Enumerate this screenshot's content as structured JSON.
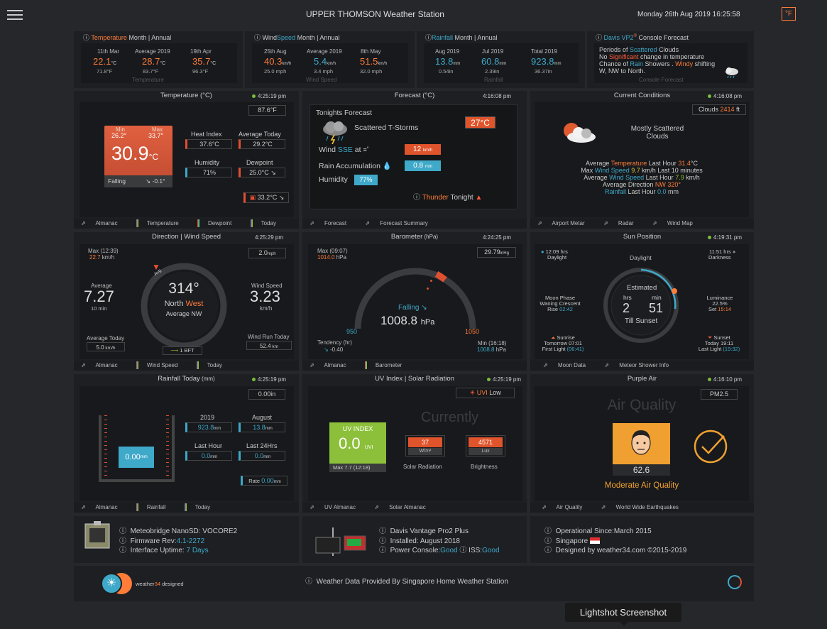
{
  "header": {
    "title": "UPPER THOMSON Weather Station",
    "datetime": "Monday 26th Aug 2019  16:25:58",
    "unit_toggle": "°F"
  },
  "top": {
    "temp": {
      "title_a": "Temperature",
      "title_b": " Month | Annual",
      "c1_label": "11th Mar",
      "c1_val": "22.1",
      "c1_unit": "°C",
      "c1_sub": "71.8°F",
      "c2_label": "Average 2019",
      "c2_val": "28.7",
      "c2_unit": "°C",
      "c2_sub": "83.7°F",
      "c3_label": "19th Apr",
      "c3_val": "35.7",
      "c3_unit": "°C",
      "c3_sub": "96.3°F",
      "caption": "Temperature"
    },
    "wind": {
      "title_a": "Wind",
      "title_b": "Speed",
      "title_c": "  Month | Annual",
      "c1_label": "25th Aug",
      "c1_val": "40.3",
      "c1_unit": "km/h",
      "c1_sub": "25.0 mph",
      "c2_label": "Average 2019",
      "c2_val": "5.4",
      "c2_unit": "km/h",
      "c2_sub": "3.4 mph",
      "c3_label": "8th May",
      "c3_val": "51.5",
      "c3_unit": "km/h",
      "c3_sub": "32.0 mph",
      "caption": "Wind Speed"
    },
    "rain": {
      "title_a": "Rainfall",
      "title_b": " Month | Annual",
      "c1_label": "Aug 2019",
      "c1_val": "13.8",
      "c1_unit": "mm",
      "c1_sub": "0.54in",
      "c2_label": "Jul 2019",
      "c2_val": "60.8",
      "c2_unit": "mm",
      "c2_sub": "2.39in",
      "c3_label": "Total 2019",
      "c3_val": "923.8",
      "c3_unit": "mm",
      "c3_sub": "36.37in",
      "caption": "Rainfall"
    },
    "console": {
      "title_a": "Davis VP2",
      "title_sup": "®",
      "title_b": " Console Forecast",
      "l1a": "Periods of ",
      "l1b": "Scattered",
      "l1c": " Clouds",
      "l2a": "No ",
      "l2b": "Significant",
      "l2c": " change in temperature",
      "l3a": "Chance of ",
      "l3b": "Rain",
      "l3c": " Showers . ",
      "l3d": "Windy",
      "l3e": " shifting",
      "l4": "W, NW to North.",
      "caption": "Console Forecast"
    }
  },
  "temperature": {
    "title": "Temperature (°C)",
    "time": "4:25:19 pm",
    "f_box": "87.6°F",
    "min_label": "Min",
    "min_val": "26.2°",
    "max_label": "Max",
    "max_val": "33.7°",
    "current": "30.9",
    "current_unit": "°C",
    "trend": "Falling",
    "trend_val": "-0.1°",
    "hi_label": "Heat Index",
    "hi_val": "37.6°C",
    "avg_label": "Average Today",
    "avg_val": "29.2°C",
    "hum_label": "Humidity",
    "hum_val": "71%",
    "dew_label": "Dewpoint",
    "dew_val": "25.0°C",
    "indoor": "33.2°C",
    "foot": [
      "Almanac",
      "Temperature",
      "Dewpoint",
      "Today"
    ]
  },
  "forecast": {
    "title": "Forecast (°C)",
    "time": "4:16:08 pm",
    "label": "Tonights Forecast",
    "cond": "Scattered T-Storms",
    "temp": "27°C",
    "wind_a": "Wind ",
    "wind_dir": "SSE",
    "wind_b": " at",
    "wind_val": "12",
    "wind_unit": "km/h",
    "rain_label": "Rain Accumulation",
    "rain_val": "0.8",
    "rain_unit": "mm",
    "hum_label": "Humidity",
    "hum_val": "77%",
    "thunder_a": "Thunder",
    "thunder_b": " Tonight",
    "foot": [
      "Forecast",
      "Forecast Summary"
    ]
  },
  "conditions": {
    "title": "Current Conditions",
    "time": "4:16:08 pm",
    "clouds_label": "Clouds",
    "clouds_val": "2414",
    "clouds_unit": "ft",
    "desc1": "Mostly Scattered",
    "desc2": "Clouds",
    "l1a": "Average ",
    "l1b": "Temperature",
    "l1c": " Last Hour ",
    "l1d": "31.4",
    "l1e": "°C",
    "l2a": "Max ",
    "l2b": "Wind Speed",
    "l2c": " 9.7",
    "l2d": " km/h Last 10 minutes",
    "l3a": "Average ",
    "l3b": "Wind Speed",
    "l3c": " Last Hour ",
    "l3d": "7.9",
    "l3e": " km/h",
    "l4a": "Average Direction ",
    "l4b": "NW",
    "l4c": " 320°",
    "l5a": "Rainfall",
    "l5b": " Last Hour ",
    "l5c": "0.0",
    "l5d": " mm",
    "foot": [
      "Airport Metar",
      "Radar",
      "Wind Map"
    ]
  },
  "wind": {
    "title": "Direction | Wind Speed",
    "time": "4:25:29 pm",
    "max_label": "Max (12:39)",
    "max_val": "22.7",
    "max_unit": " km/h",
    "mph": "2.0",
    "mph_unit": "mph",
    "avg_label": "Average",
    "avg_val": "7.27",
    "avg_sub": "10 min",
    "deg": "314°",
    "dir_a": "North ",
    "dir_b": "West",
    "dir_avg": "Average NW",
    "avg_marker": "Avg",
    "speed_label": "Wind Speed",
    "speed_val": "3.23",
    "speed_unit": "km/h",
    "avgtoday_label": "Average Today",
    "avgtoday_val": "5.0",
    "avgtoday_unit": " km/h",
    "run_label": "Wind Run Today",
    "run_val": "52.4",
    "run_unit": " km",
    "bft": "1 BFT",
    "foot": [
      "Almanac",
      "Wind Speed",
      "Today"
    ]
  },
  "barometer": {
    "title": "Barometer",
    "title_unit": " (hPa)",
    "time": "4:24:25 pm",
    "max_label": "Max (09:07)",
    "max_val": "1014.0",
    "max_unit": " hPa",
    "inhg": "29.79",
    "inhg_unit": "inHg",
    "trend": "Falling",
    "value": "1008.8",
    "unit": "hPa",
    "scale_min": "950",
    "scale_max": "1050",
    "tend_label": "Tendency (hr)",
    "tend_val": "-0.40",
    "min_label": "Min (16:18)",
    "min_val": "1008.8",
    "min_unit": " hPa",
    "foot": [
      "Almanac",
      "Barometer"
    ]
  },
  "sun": {
    "title": "Sun Position",
    "time": "4:19:31 pm",
    "daylight_hrs": "12:09 hrs",
    "daylight_label": "Daylight",
    "center_label": "Daylight",
    "dark_hrs": "11:51 hrs",
    "dark_label": "Darkness",
    "est": "Estimated",
    "hrs_label": "hrs",
    "min_label": "min",
    "hrs": "2",
    "mins": "51",
    "till": "Till Sunset",
    "moon1": "Moon Phase",
    "moon2": "Waning Crescent",
    "rise_label": "Rise ",
    "rise_val": "02:42",
    "lum_label": "Luminance",
    "lum_val": "22.5%",
    "set_label": "Set ",
    "set_val": "15:14",
    "sunrise_label": "Sunrise",
    "sunrise_tom": "Tomorrow 07:01",
    "first_light": "First Light ",
    "first_val": "(06:41)",
    "sunset_label": "Sunset",
    "sunset_today": "Today 19:11",
    "last_light": "Last Light ",
    "last_val": "(19:32)",
    "foot": [
      "Moon Data",
      "Meteor Shower Info"
    ]
  },
  "rainfall": {
    "title": "Rainfall Today",
    "title_unit": " (mm)",
    "time": "4:25:19 pm",
    "in_box": "0.00in",
    "gauge": "0.00",
    "gauge_unit": "mm",
    "y_label": "2019",
    "y_val": "923.8",
    "y_unit": "mm",
    "m_label": "August",
    "m_val": "13.8",
    "m_unit": "mm",
    "lh_label": "Last Hour",
    "lh_val": "0.0",
    "lh_unit": "mm",
    "l24_label": "Last 24Hrs",
    "l24_val": "0.0",
    "l24_unit": "mm",
    "rate_label": "Rate ",
    "rate_val": "0.00",
    "rate_unit": "mm",
    "foot": [
      "Almanac",
      "Rainfall",
      "Today"
    ]
  },
  "uv": {
    "title": "UV Index | Solar Radiation",
    "time": "4:25:19 pm",
    "uvi_a": "UVI",
    "uvi_b": " Low",
    "currently": "Currently",
    "uv_label": "UV INDEX",
    "uv_val": "0.0",
    "uv_unit": "UVI",
    "uv_max": "Max 7.7 (12:18)",
    "solar_val": "37",
    "solar_unit": "W/m²",
    "solar_label": "Solar Radiation",
    "lux_val": "4571",
    "lux_unit": "Lux",
    "lux_label": "Brightness",
    "foot": [
      "UV Almanac",
      "Solar Almanac"
    ]
  },
  "air": {
    "title": "Purple Air",
    "time": "4:16:10 pm",
    "pm": "PM2.5",
    "heading": "Air Quality",
    "val": "62.6",
    "desc": "Moderate Air Quality",
    "foot": [
      "Air Quality",
      "World Wide Earthquakes"
    ]
  },
  "info": {
    "mb1": "Meteobridge NanoSD: VOCORE2",
    "mb2a": "Firmware Rev:",
    "mb2b": "4.1-2272",
    "mb3a": "Interface Uptime: ",
    "mb3b": "7 Days",
    "d1": "Davis Vantage Pro2 Plus",
    "d2": "Installed: August 2018",
    "d3a": "Power Console:",
    "d3b": "Good",
    "d3c": " ISS:",
    "d3d": "Good",
    "o1": "Operational Since:March 2015",
    "o2": "Singapore",
    "o3": "Designed by weather34.com ©2015-2019"
  },
  "footer": {
    "brand_a": "weather",
    "brand_b": "34",
    "brand_c": " designed",
    "provided": "Weather Data Provided By Singapore Home Weather Station"
  },
  "tooltip": "Lightshot Screenshot"
}
